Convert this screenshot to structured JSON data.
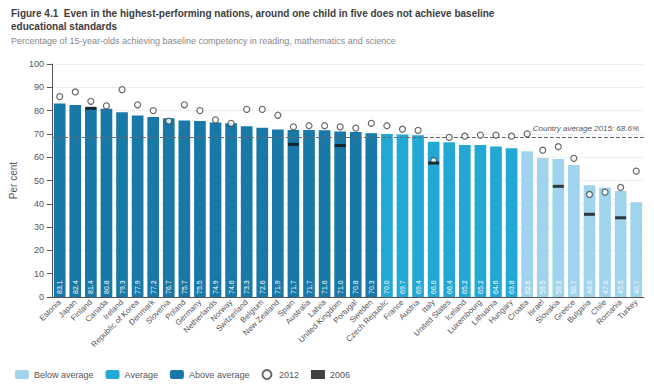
{
  "chart_data": {
    "type": "bar",
    "title": "Figure 4.1  Even in the highest-performing nations, around one child in five does not achieve baseline\neducational standards",
    "subtitle": "Percentage of 15-year-olds achieving baseline competency in reading, mathematics and science",
    "ylabel": "Per cent",
    "categories": [
      "Estonia",
      "Japan",
      "Finland",
      "Canada",
      "Ireland",
      "Republic of Korea",
      "Denmark",
      "Slovenia",
      "Poland",
      "Germany",
      "Netherlands",
      "Norway",
      "Switzerland",
      "Belgium",
      "New Zealand",
      "Spain",
      "Australia",
      "Latvia",
      "United Kingdom",
      "Portugal",
      "Sweden",
      "Czech Republic",
      "France",
      "Austria",
      "Italy",
      "United States",
      "Iceland",
      "Luxembourg",
      "Lithuania",
      "Hungary",
      "Croatia",
      "Israel",
      "Slovakia",
      "Greece",
      "Bulgaria",
      "Chile",
      "Romania",
      "Turkey"
    ],
    "series": [
      {
        "name": "Below average",
        "type": "bar",
        "color": "#a0d4ec",
        "values": [
          null,
          null,
          null,
          null,
          null,
          null,
          null,
          null,
          null,
          null,
          null,
          null,
          null,
          null,
          null,
          null,
          null,
          null,
          null,
          null,
          null,
          null,
          null,
          null,
          null,
          null,
          null,
          null,
          null,
          null,
          62.6,
          59.5,
          59.2,
          56.7,
          48.0,
          47.0,
          45.5,
          40.7
        ],
        "value_labels": [
          null,
          null,
          null,
          null,
          null,
          null,
          null,
          null,
          null,
          null,
          null,
          null,
          null,
          null,
          null,
          null,
          null,
          null,
          null,
          null,
          null,
          null,
          null,
          null,
          null,
          null,
          null,
          null,
          null,
          null,
          "62.6",
          "59.5",
          "59.2",
          "56.7",
          "48.0",
          "47.0",
          "45.5",
          "40.7"
        ]
      },
      {
        "name": "Average",
        "type": "bar",
        "color": "#22a8d4",
        "values": [
          null,
          null,
          null,
          null,
          null,
          null,
          null,
          null,
          null,
          null,
          null,
          null,
          null,
          null,
          null,
          null,
          null,
          null,
          null,
          null,
          null,
          70.0,
          69.7,
          69.4,
          66.6,
          66.4,
          65.2,
          65.2,
          64.6,
          63.8,
          null,
          null,
          null,
          null,
          null,
          null,
          null,
          null
        ],
        "value_labels": [
          null,
          null,
          null,
          null,
          null,
          null,
          null,
          null,
          null,
          null,
          null,
          null,
          null,
          null,
          null,
          null,
          null,
          null,
          null,
          null,
          null,
          "70.0",
          "69.7",
          "69.4",
          "66.6",
          "66.4",
          "65.2",
          "65.2",
          "64.6",
          "63.8",
          null,
          null,
          null,
          null,
          null,
          null,
          null,
          null
        ]
      },
      {
        "name": "Above average",
        "type": "bar",
        "color": "#1878a8",
        "values": [
          83.1,
          82.4,
          81.4,
          80.8,
          79.3,
          77.9,
          77.2,
          76.7,
          75.7,
          75.5,
          74.9,
          74.6,
          73.3,
          72.6,
          71.9,
          71.7,
          71.7,
          71.6,
          71.0,
          70.8,
          70.3,
          null,
          null,
          null,
          null,
          null,
          null,
          null,
          null,
          null,
          null,
          null,
          null,
          null,
          null,
          null,
          null,
          null
        ],
        "value_labels": [
          "83.1",
          "82.4",
          "81.4",
          "80.8",
          "79.3",
          "77.9",
          "77.2",
          "76.7",
          "75.7",
          "75.5",
          "74.9",
          "74.6",
          "73.3",
          "72.6",
          "71.9",
          "71.7",
          "71.7",
          "71.6",
          "71.0",
          "70.8",
          "70.3",
          null,
          null,
          null,
          null,
          null,
          null,
          null,
          null,
          null,
          null,
          null,
          null,
          null,
          null,
          null,
          null,
          null
        ]
      },
      {
        "name": "2012",
        "type": "scatter",
        "marker": "circle",
        "color": "#444444",
        "values": [
          86.0,
          88.0,
          84.0,
          82.0,
          89.0,
          82.5,
          80.0,
          75.5,
          82.5,
          80.0,
          76.0,
          74.5,
          80.5,
          80.5,
          78.0,
          73.0,
          73.5,
          73.5,
          73.0,
          72.5,
          74.5,
          73.5,
          72.0,
          71.5,
          58.5,
          68.5,
          69.0,
          69.5,
          69.5,
          69.0,
          70.0,
          63.0,
          64.5,
          59.5,
          44.0,
          45.0,
          47.0,
          54.0
        ]
      },
      {
        "name": "2006",
        "type": "scatter",
        "marker": "dash",
        "color": "#111111",
        "values": [
          null,
          null,
          81.0,
          null,
          null,
          null,
          null,
          null,
          null,
          null,
          null,
          null,
          null,
          null,
          null,
          65.5,
          null,
          null,
          65.0,
          null,
          null,
          null,
          null,
          null,
          57.5,
          null,
          null,
          null,
          null,
          null,
          null,
          null,
          47.5,
          null,
          35.5,
          null,
          34.0,
          null
        ]
      }
    ],
    "annotations": [
      {
        "text": "Country average 2015: 68.6%",
        "y": 68.6,
        "line_style": "dashed"
      }
    ],
    "data_labels": true,
    "ylim": [
      0,
      100
    ],
    "yticks": [
      0,
      10,
      20,
      30,
      40,
      50,
      60,
      70,
      80,
      90,
      100
    ],
    "grid": true,
    "legend": "lower left"
  }
}
